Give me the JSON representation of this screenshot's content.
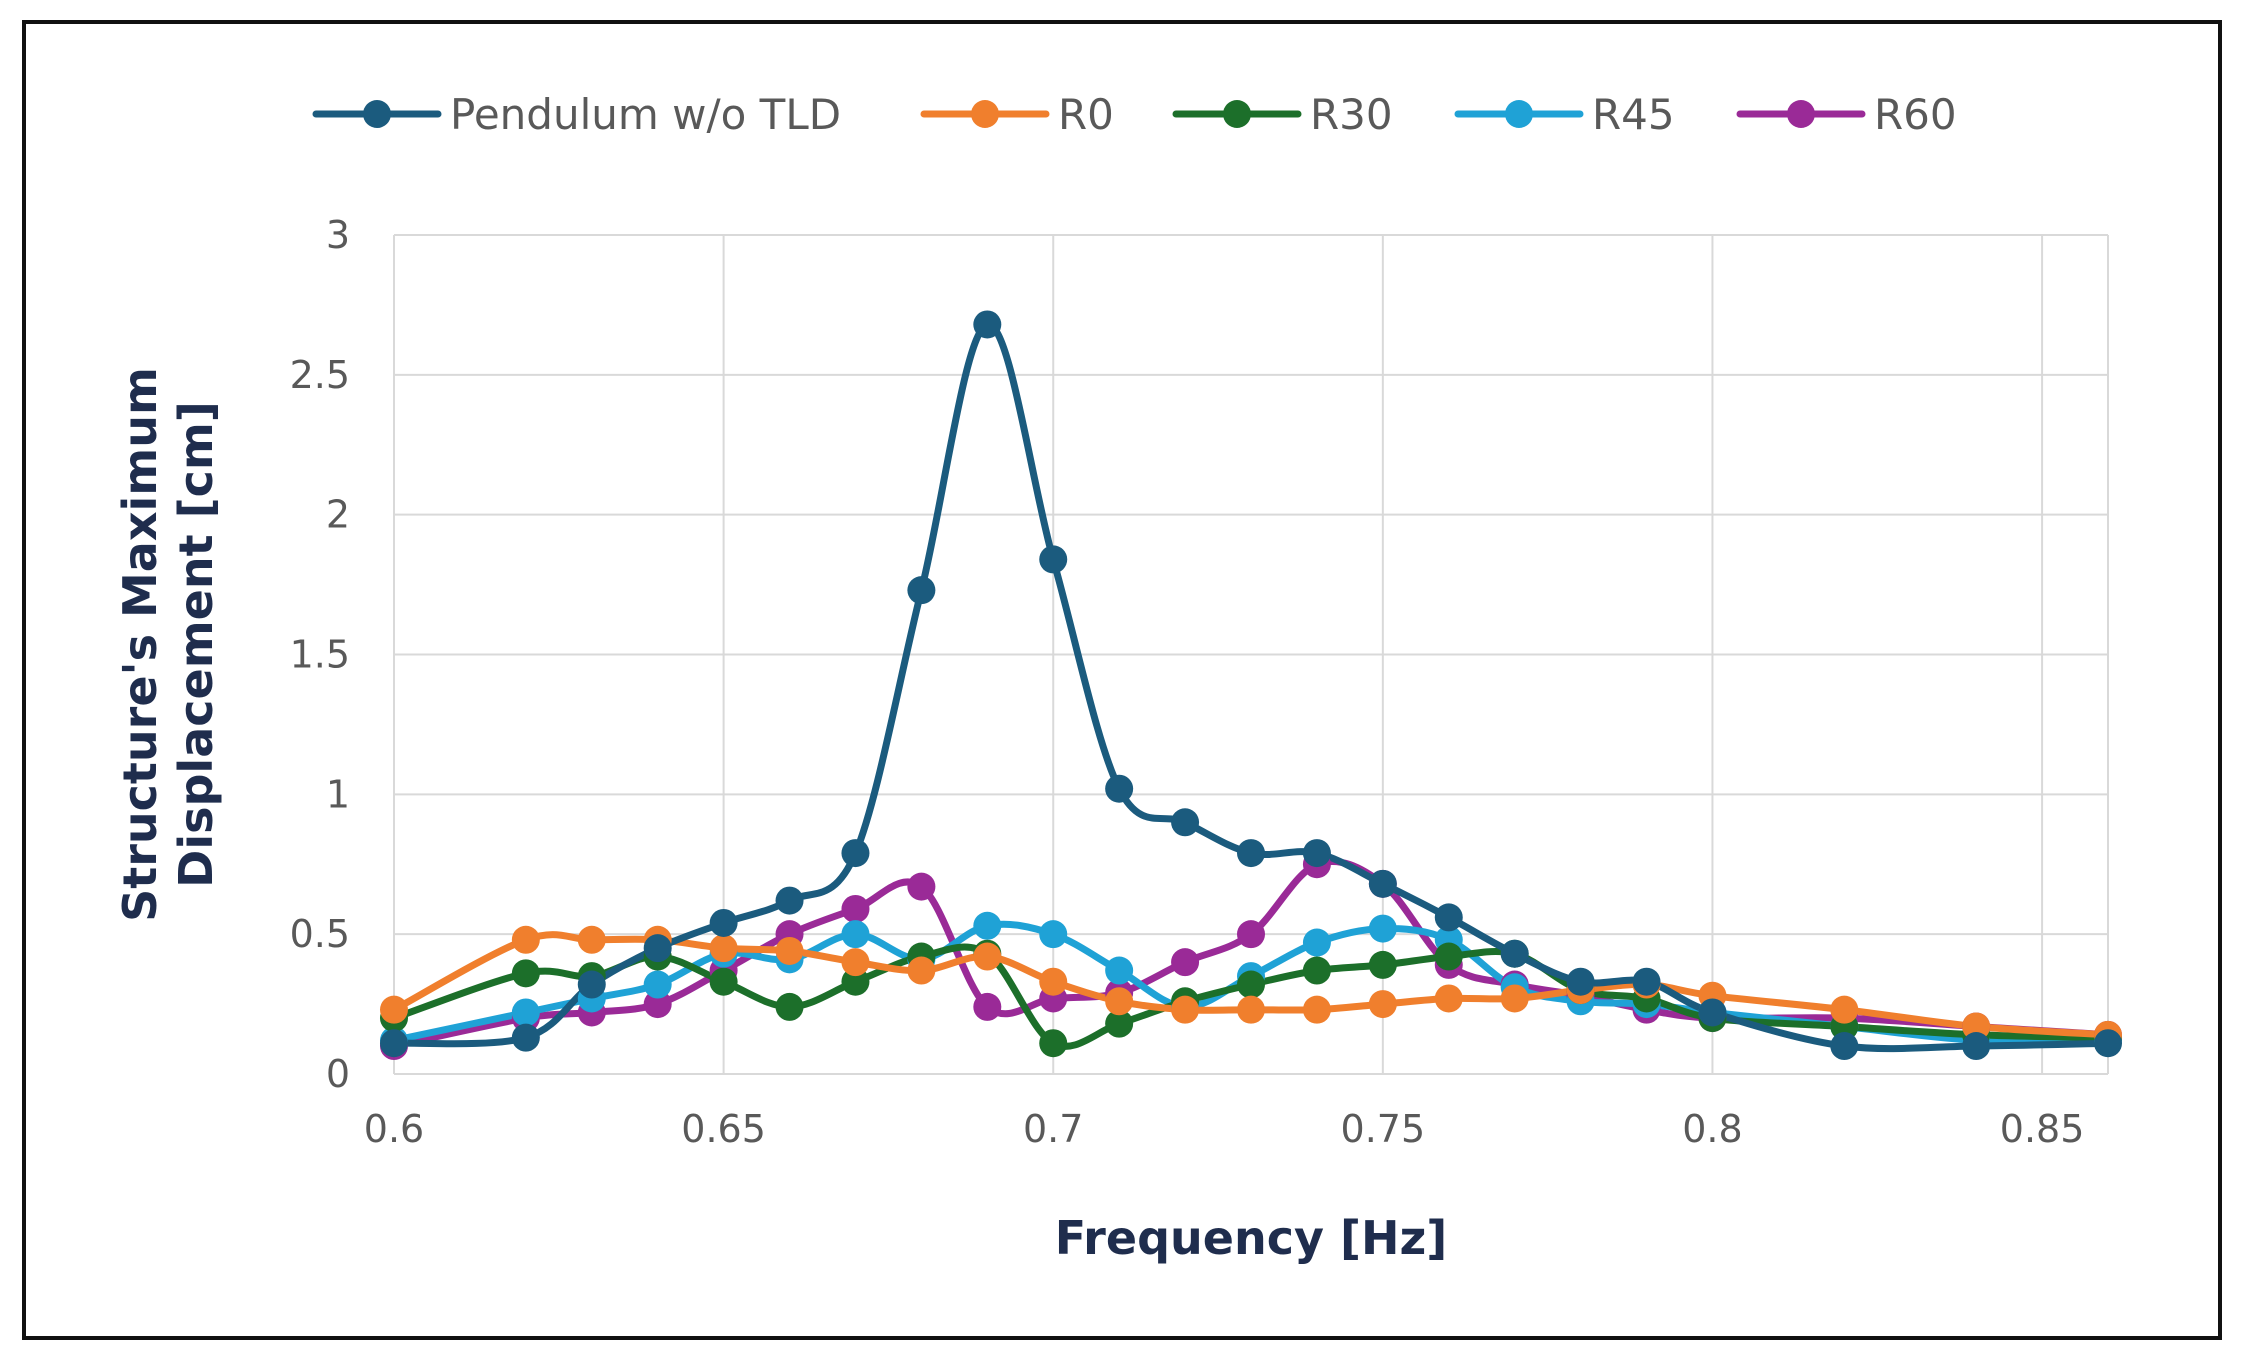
{
  "chart_data": {
    "type": "line",
    "title": "",
    "xlabel": "Frequency [Hz]",
    "ylabel_line1": "Structure's Maximum",
    "ylabel_line2": "Displacement [cm]",
    "xlim": [
      0.6,
      0.86
    ],
    "ylim": [
      0,
      3
    ],
    "xticks": [
      0.6,
      0.65,
      0.7,
      0.75,
      0.8,
      0.85
    ],
    "xtick_labels": [
      "0.6",
      "0.65",
      "0.7",
      "0.75",
      "0.8",
      "0.85"
    ],
    "yticks": [
      0,
      0.5,
      1,
      1.5,
      2,
      2.5,
      3
    ],
    "ytick_labels": [
      "0",
      "0.5",
      "1",
      "1.5",
      "2",
      "2.5",
      "3"
    ],
    "grid": true,
    "legend_position": "top",
    "series": [
      {
        "name": "Pendulum w/o TLD",
        "color": "#1b5b7e",
        "x": [
          0.6,
          0.62,
          0.63,
          0.64,
          0.65,
          0.66,
          0.67,
          0.68,
          0.69,
          0.7,
          0.71,
          0.72,
          0.73,
          0.74,
          0.75,
          0.76,
          0.77,
          0.78,
          0.79,
          0.8,
          0.82,
          0.84,
          0.86
        ],
        "y": [
          0.11,
          0.13,
          0.32,
          0.45,
          0.54,
          0.62,
          0.79,
          1.73,
          2.68,
          1.84,
          1.02,
          0.9,
          0.79,
          0.79,
          0.68,
          0.56,
          0.43,
          0.33,
          0.33,
          0.22,
          0.1,
          0.1,
          0.11
        ]
      },
      {
        "name": "R0",
        "color": "#f07f2d",
        "x": [
          0.6,
          0.62,
          0.63,
          0.64,
          0.65,
          0.66,
          0.67,
          0.68,
          0.69,
          0.7,
          0.71,
          0.72,
          0.73,
          0.74,
          0.75,
          0.76,
          0.77,
          0.78,
          0.79,
          0.8,
          0.82,
          0.84,
          0.86
        ],
        "y": [
          0.23,
          0.48,
          0.48,
          0.48,
          0.45,
          0.44,
          0.4,
          0.37,
          0.42,
          0.33,
          0.26,
          0.23,
          0.23,
          0.23,
          0.25,
          0.27,
          0.27,
          0.3,
          0.32,
          0.28,
          0.23,
          0.17,
          0.14
        ]
      },
      {
        "name": "R30",
        "color": "#1c6f2a",
        "x": [
          0.6,
          0.62,
          0.63,
          0.64,
          0.65,
          0.66,
          0.67,
          0.68,
          0.69,
          0.7,
          0.71,
          0.72,
          0.73,
          0.74,
          0.75,
          0.76,
          0.77,
          0.78,
          0.79,
          0.8,
          0.82,
          0.84,
          0.86
        ],
        "y": [
          0.2,
          0.36,
          0.35,
          0.42,
          0.33,
          0.24,
          0.33,
          0.42,
          0.43,
          0.11,
          0.18,
          0.26,
          0.32,
          0.37,
          0.39,
          0.42,
          0.43,
          0.3,
          0.27,
          0.2,
          0.17,
          0.14,
          0.13
        ]
      },
      {
        "name": "R45",
        "color": "#1fa2d6",
        "x": [
          0.6,
          0.62,
          0.63,
          0.64,
          0.65,
          0.66,
          0.67,
          0.68,
          0.69,
          0.7,
          0.71,
          0.72,
          0.73,
          0.74,
          0.75,
          0.76,
          0.77,
          0.78,
          0.79,
          0.8,
          0.82,
          0.84,
          0.86
        ],
        "y": [
          0.12,
          0.22,
          0.27,
          0.32,
          0.43,
          0.41,
          0.5,
          0.41,
          0.53,
          0.5,
          0.37,
          0.24,
          0.35,
          0.47,
          0.52,
          0.48,
          0.31,
          0.26,
          0.25,
          0.22,
          0.17,
          0.12,
          0.12
        ]
      },
      {
        "name": "R60",
        "color": "#9a2a97",
        "x": [
          0.6,
          0.62,
          0.63,
          0.64,
          0.65,
          0.66,
          0.67,
          0.68,
          0.69,
          0.7,
          0.71,
          0.72,
          0.73,
          0.74,
          0.75,
          0.76,
          0.77,
          0.78,
          0.79,
          0.8,
          0.82,
          0.84,
          0.86
        ],
        "y": [
          0.1,
          0.2,
          0.22,
          0.25,
          0.37,
          0.5,
          0.59,
          0.67,
          0.24,
          0.27,
          0.29,
          0.4,
          0.5,
          0.75,
          0.68,
          0.39,
          0.32,
          0.28,
          0.23,
          0.2,
          0.2,
          0.17,
          0.14
        ]
      }
    ]
  }
}
